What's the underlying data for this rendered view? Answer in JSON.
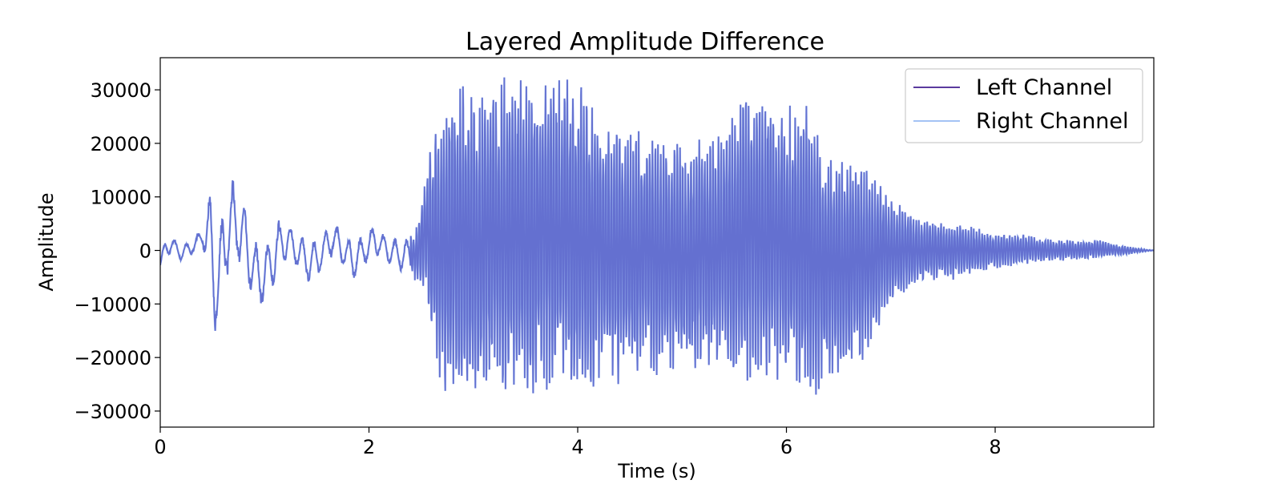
{
  "chart_data": {
    "type": "line",
    "title": "Layered Amplitude Difference",
    "xlabel": "Time (s)",
    "ylabel": "Amplitude",
    "xlim": [
      0,
      9.52
    ],
    "ylim": [
      -33000,
      36000
    ],
    "x_ticks": [
      0,
      2,
      4,
      6,
      8
    ],
    "x_tick_labels": [
      "0",
      "2",
      "4",
      "6",
      "8"
    ],
    "y_ticks": [
      30000,
      20000,
      10000,
      0,
      -10000,
      -20000,
      -30000
    ],
    "y_tick_labels": [
      "30000",
      "20000",
      "10000",
      "0",
      "−10000",
      "−20000",
      "−30000"
    ],
    "grid": false,
    "legend_position": "top-right",
    "series": [
      {
        "name": "Left Channel",
        "color": "#5b3a9e",
        "x": [
          0,
          0.05,
          0.12,
          0.2,
          0.3,
          0.4,
          0.48,
          0.52,
          0.56,
          0.6,
          0.7,
          0.8,
          0.9,
          1.0,
          1.1,
          1.2,
          1.3,
          1.45,
          1.55,
          1.65,
          1.75,
          1.85,
          1.95,
          2.05,
          2.15,
          2.3,
          2.45,
          2.55,
          2.6,
          2.7,
          2.8,
          2.9,
          3.0,
          3.2,
          3.4,
          3.6,
          3.8,
          4.0,
          4.1,
          4.3,
          4.6,
          5.0,
          5.4,
          5.6,
          6.0,
          6.2,
          6.4,
          6.7,
          7.0,
          7.2,
          7.5,
          7.8,
          8.0,
          8.3,
          8.6,
          9.0,
          9.2,
          9.52
        ],
        "envelope_max": [
          -2000,
          2500,
          2500,
          1000,
          2000,
          4000,
          11500,
          3000,
          2000,
          9000,
          13500,
          9000,
          2000,
          1000,
          5000,
          7000,
          3000,
          2000,
          3000,
          6000,
          3000,
          2000,
          3000,
          5000,
          3000,
          2000,
          4000,
          17000,
          22000,
          27000,
          33000,
          33000,
          30000,
          32000,
          33000,
          33000,
          33000,
          33000,
          30000,
          25000,
          24000,
          20000,
          23000,
          32000,
          28000,
          29000,
          20000,
          18000,
          10000,
          7000,
          6000,
          4500,
          3500,
          3000,
          2000,
          2000,
          1000,
          0
        ],
        "envelope_min": [
          -3500,
          -1000,
          -500,
          -2000,
          -1000,
          1000,
          -5000,
          -15000,
          -16500,
          -8000,
          -2000,
          -4000,
          -10000,
          -11000,
          -6000,
          -2000,
          -3000,
          -7000,
          -4000,
          -1000,
          -3000,
          -6000,
          -3000,
          -1000,
          -2000,
          -4000,
          -6000,
          -8000,
          -20000,
          -29000,
          -27000,
          -28500,
          -28500,
          -26000,
          -28000,
          -27000,
          -26000,
          -29000,
          -27000,
          -26000,
          -24000,
          -23000,
          -22000,
          -26000,
          -24000,
          -28500,
          -26000,
          -22000,
          -10000,
          -7000,
          -6000,
          -4500,
          -3500,
          -2500,
          -2000,
          -1500,
          -1000,
          0
        ]
      },
      {
        "name": "Right Channel",
        "color": "#a4c2f4"
      }
    ]
  }
}
